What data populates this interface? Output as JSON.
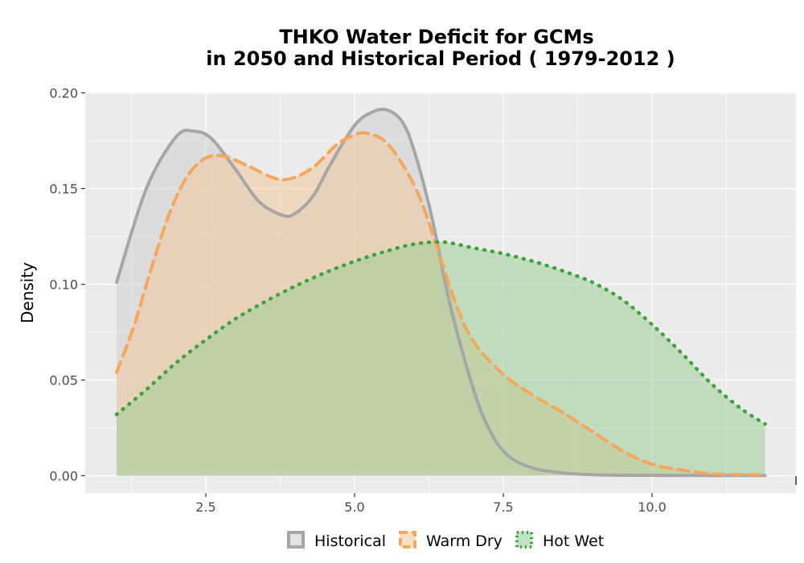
{
  "chart_data": {
    "type": "area",
    "title_line1": "THKO  Water Deficit for GCMs",
    "title_line2": "in 2050 and Historical Period ( 1979-2012 )",
    "xlabel": "",
    "ylabel": "Density",
    "xlim": [
      0.9,
      12.3
    ],
    "ylim": [
      0,
      0.2
    ],
    "x_ticks": [
      2.5,
      5.0,
      7.5,
      10.0
    ],
    "x_tick_labels": [
      "2.5",
      "5.0",
      "7.5",
      "10.0"
    ],
    "y_ticks": [
      0,
      0.05,
      0.1,
      0.15,
      0.2
    ],
    "y_tick_labels": [
      "0.00",
      "0.05",
      "0.10",
      "0.15",
      "0.20"
    ],
    "grid": true,
    "legend_position": "bottom",
    "series": [
      {
        "name": "Historical",
        "line_color": "#a6a6a6",
        "fill_color": "#d0d0d0",
        "line_style": "solid",
        "x": [
          1.0,
          1.5,
          2.0,
          2.3,
          2.6,
          3.0,
          3.4,
          3.8,
          4.0,
          4.3,
          4.6,
          5.0,
          5.3,
          5.55,
          5.8,
          6.0,
          6.3,
          6.6,
          7.0,
          7.3,
          7.6,
          8.0,
          8.5,
          9.0,
          10.0,
          11.0,
          11.9
        ],
        "y": [
          0.101,
          0.15,
          0.177,
          0.18,
          0.176,
          0.16,
          0.143,
          0.136,
          0.137,
          0.146,
          0.163,
          0.183,
          0.19,
          0.191,
          0.185,
          0.17,
          0.135,
          0.09,
          0.045,
          0.022,
          0.01,
          0.004,
          0.0015,
          0.0005,
          0.0002,
          0.0001,
          0.0001
        ]
      },
      {
        "name": "Warm Dry",
        "line_color": "#f4a65a",
        "fill_color": "#f3c9a1",
        "line_style": "dashed",
        "x": [
          1.0,
          1.3,
          1.6,
          1.9,
          2.2,
          2.5,
          2.8,
          3.2,
          3.6,
          3.9,
          4.3,
          4.7,
          5.0,
          5.2,
          5.5,
          5.8,
          6.1,
          6.4,
          6.7,
          7.0,
          7.5,
          8.0,
          8.5,
          9.0,
          9.5,
          10.0,
          10.5,
          11.0,
          11.5,
          11.9
        ],
        "y": [
          0.054,
          0.079,
          0.11,
          0.138,
          0.157,
          0.166,
          0.167,
          0.162,
          0.156,
          0.155,
          0.161,
          0.173,
          0.178,
          0.179,
          0.175,
          0.163,
          0.145,
          0.118,
          0.09,
          0.07,
          0.053,
          0.042,
          0.033,
          0.023,
          0.013,
          0.006,
          0.003,
          0.001,
          0.0005,
          0.0005
        ]
      },
      {
        "name": "Hot Wet",
        "line_color": "#3aa33a",
        "fill_color": "#9ccf97",
        "line_style": "dotted",
        "x": [
          1.0,
          1.5,
          2.0,
          2.5,
          3.0,
          3.5,
          4.0,
          4.5,
          5.0,
          5.5,
          6.0,
          6.5,
          7.0,
          7.5,
          8.0,
          8.5,
          9.0,
          9.5,
          10.0,
          10.5,
          11.0,
          11.5,
          11.9
        ],
        "y": [
          0.032,
          0.045,
          0.059,
          0.071,
          0.082,
          0.091,
          0.099,
          0.106,
          0.112,
          0.117,
          0.121,
          0.122,
          0.119,
          0.116,
          0.112,
          0.107,
          0.101,
          0.092,
          0.079,
          0.064,
          0.048,
          0.035,
          0.027
        ]
      }
    ]
  }
}
